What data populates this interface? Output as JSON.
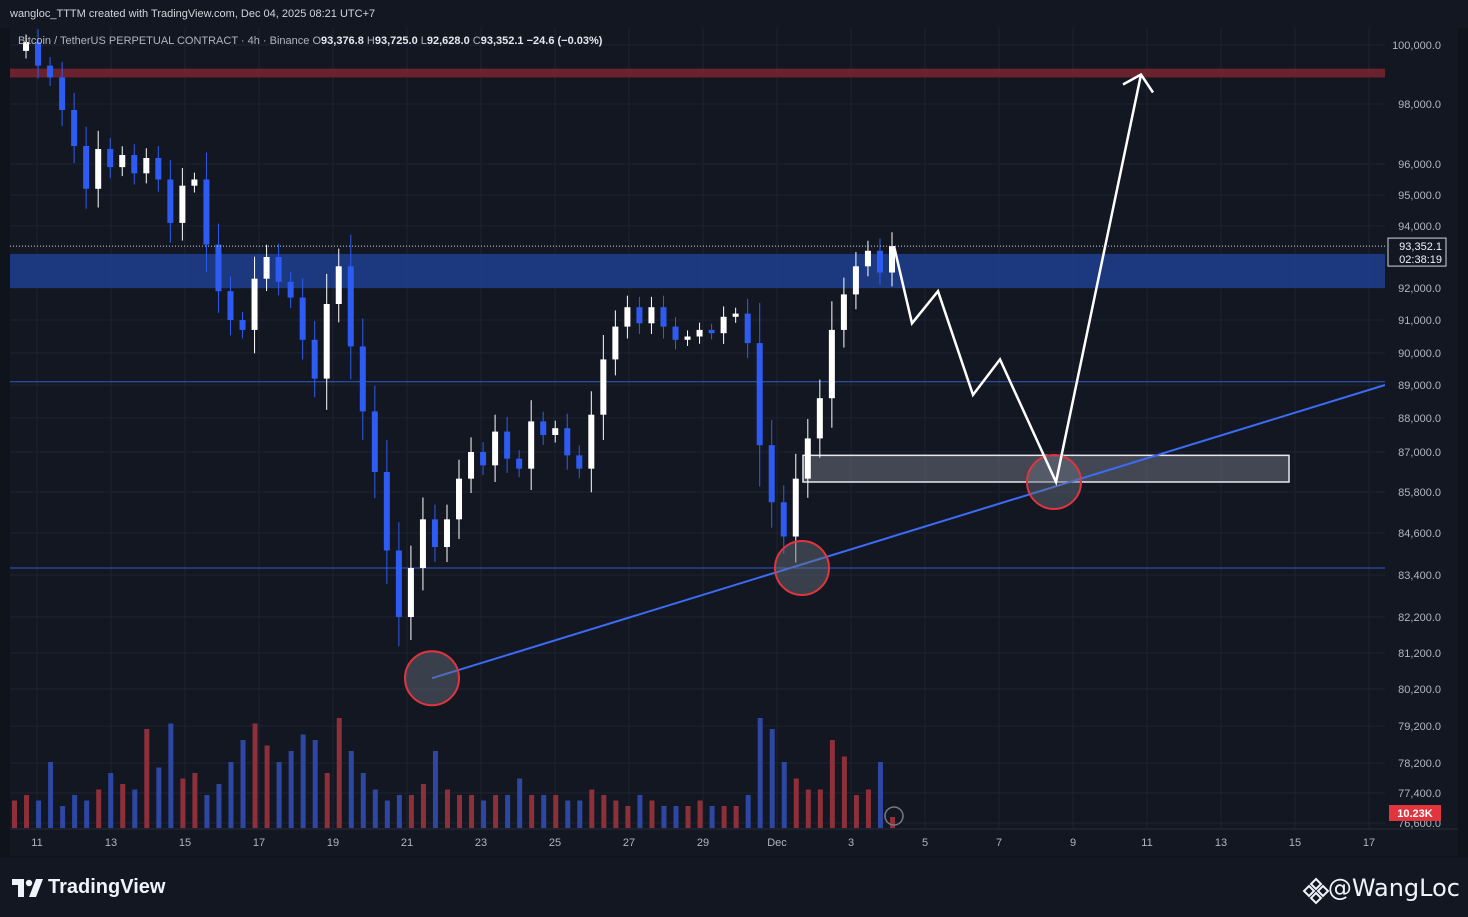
{
  "header": {
    "publisher_line": "wangloc_TTTM created with TradingView.com, Dec 04, 2025 08:21 UTC+7"
  },
  "legend": {
    "symbol": "Bitcoin / TetherUS PERPETUAL CONTRACT · 4h · Binance",
    "open_label": "O",
    "open": "93,376.8",
    "high_label": "H",
    "high": "93,725.0",
    "low_label": "L",
    "low": "92,628.0",
    "close_label": "C",
    "close": "93,352.1",
    "change": "−24.6 (−0.03%)"
  },
  "price_label": {
    "value": "93,352.1",
    "countdown": "02:38:19"
  },
  "volume_label": "10.23K",
  "footer": {
    "brand": "TradingView",
    "author": "@WangLoc"
  },
  "colors": {
    "background": "#131722",
    "up": "#ffffff",
    "down": "#2e5cf2",
    "vol_up": "#8e3039",
    "vol_down": "#2e47a3",
    "supply_zone": "#7a2430",
    "demand_zone": "#1f3f91",
    "trendline": "#3b6cf5",
    "circle": "#e0353e",
    "projection": "#ffffff"
  },
  "chart_data": {
    "type": "candlestick",
    "symbol": "Bitcoin / TetherUS PERPETUAL CONTRACT",
    "interval": "4h",
    "exchange": "Binance",
    "ohlc_last": {
      "open": 93376.8,
      "high": 93725.0,
      "low": 92628.0,
      "close": 93352.1
    },
    "y_ticks": [
      100000,
      98000,
      96000,
      95000,
      94000,
      92000,
      91000,
      90000,
      89000,
      88000,
      87000,
      85800,
      84600,
      83400,
      82200,
      81200,
      80200,
      79200,
      78200,
      77400,
      76600
    ],
    "y_tick_labels": [
      "100,000.0",
      "98,000.0",
      "96,000.0",
      "95,000.0",
      "94,000.0",
      "92,000.0",
      "91,000.0",
      "90,000.0",
      "89,000.0",
      "88,000.0",
      "87,000.0",
      "85,800.0",
      "84,600.0",
      "83,400.0",
      "82,200.0",
      "81,200.0",
      "80,200.0",
      "79,200.0",
      "78,200.0",
      "77,400.0",
      "76,600.0"
    ],
    "x_ticks": [
      "11",
      "13",
      "15",
      "17",
      "19",
      "21",
      "23",
      "25",
      "27",
      "29",
      "Dec",
      "3",
      "5",
      "7",
      "9",
      "11",
      "13",
      "15",
      "17"
    ],
    "price_path": [
      [
        0,
        99800
      ],
      [
        1,
        100100
      ],
      [
        2,
        99300
      ],
      [
        3,
        98900
      ],
      [
        4,
        97800
      ],
      [
        5,
        96600
      ],
      [
        6,
        95200
      ],
      [
        7,
        96500
      ],
      [
        8,
        95900
      ],
      [
        9,
        96300
      ],
      [
        10,
        95700
      ],
      [
        11,
        96200
      ],
      [
        12,
        95500
      ],
      [
        13,
        94100
      ],
      [
        14,
        95300
      ],
      [
        15,
        95500
      ],
      [
        16,
        93400
      ],
      [
        17,
        91900
      ],
      [
        18,
        91000
      ],
      [
        19,
        90700
      ],
      [
        20,
        92300
      ],
      [
        21,
        93000
      ],
      [
        22,
        92200
      ],
      [
        23,
        91700
      ],
      [
        24,
        90400
      ],
      [
        25,
        89200
      ],
      [
        26,
        91500
      ],
      [
        27,
        92700
      ],
      [
        28,
        90200
      ],
      [
        29,
        88200
      ],
      [
        30,
        86400
      ],
      [
        31,
        84100
      ],
      [
        32,
        82200
      ],
      [
        33,
        83600
      ],
      [
        34,
        85000
      ],
      [
        35,
        84200
      ],
      [
        36,
        85000
      ],
      [
        37,
        86200
      ],
      [
        38,
        87000
      ],
      [
        39,
        86600
      ],
      [
        40,
        87600
      ],
      [
        41,
        86800
      ],
      [
        42,
        86500
      ],
      [
        43,
        87900
      ],
      [
        44,
        87500
      ],
      [
        45,
        87700
      ],
      [
        46,
        86900
      ],
      [
        47,
        86500
      ],
      [
        48,
        88100
      ],
      [
        49,
        89800
      ],
      [
        50,
        90800
      ],
      [
        51,
        91400
      ],
      [
        52,
        90900
      ],
      [
        53,
        91400
      ],
      [
        54,
        90800
      ],
      [
        55,
        90400
      ],
      [
        56,
        90500
      ],
      [
        57,
        90700
      ],
      [
        58,
        90600
      ],
      [
        59,
        91100
      ],
      [
        60,
        91200
      ],
      [
        61,
        90300
      ],
      [
        62,
        87200
      ],
      [
        63,
        85500
      ],
      [
        64,
        84500
      ],
      [
        65,
        86200
      ],
      [
        66,
        87400
      ],
      [
        67,
        88600
      ],
      [
        68,
        90700
      ],
      [
        69,
        91800
      ],
      [
        70,
        92700
      ],
      [
        71,
        93200
      ],
      [
        72,
        92500
      ],
      [
        73,
        93350
      ]
    ],
    "volume_path": [
      [
        0,
        0.25
      ],
      [
        1,
        0.3
      ],
      [
        2,
        0.25
      ],
      [
        3,
        0.6
      ],
      [
        4,
        0.2
      ],
      [
        5,
        0.3
      ],
      [
        6,
        0.25
      ],
      [
        7,
        0.35
      ],
      [
        8,
        0.5
      ],
      [
        9,
        0.4
      ],
      [
        10,
        0.35
      ],
      [
        11,
        0.9
      ],
      [
        12,
        0.55
      ],
      [
        13,
        0.95
      ],
      [
        14,
        0.45
      ],
      [
        15,
        0.5
      ],
      [
        16,
        0.3
      ],
      [
        17,
        0.4
      ],
      [
        18,
        0.6
      ],
      [
        19,
        0.8
      ],
      [
        20,
        0.95
      ],
      [
        21,
        0.75
      ],
      [
        22,
        0.6
      ],
      [
        23,
        0.7
      ],
      [
        24,
        0.85
      ],
      [
        25,
        0.8
      ],
      [
        26,
        0.5
      ],
      [
        27,
        1.0
      ],
      [
        28,
        0.7
      ],
      [
        29,
        0.5
      ],
      [
        30,
        0.35
      ],
      [
        31,
        0.25
      ],
      [
        32,
        0.3
      ],
      [
        33,
        0.3
      ],
      [
        34,
        0.4
      ],
      [
        35,
        0.7
      ],
      [
        36,
        0.35
      ],
      [
        37,
        0.3
      ],
      [
        38,
        0.3
      ],
      [
        39,
        0.25
      ],
      [
        40,
        0.3
      ],
      [
        41,
        0.3
      ],
      [
        42,
        0.45
      ],
      [
        43,
        0.3
      ],
      [
        44,
        0.3
      ],
      [
        45,
        0.3
      ],
      [
        46,
        0.25
      ],
      [
        47,
        0.25
      ],
      [
        48,
        0.35
      ],
      [
        49,
        0.3
      ],
      [
        50,
        0.25
      ],
      [
        51,
        0.2
      ],
      [
        52,
        0.3
      ],
      [
        53,
        0.25
      ],
      [
        54,
        0.2
      ],
      [
        55,
        0.2
      ],
      [
        56,
        0.2
      ],
      [
        57,
        0.25
      ],
      [
        58,
        0.2
      ],
      [
        59,
        0.2
      ],
      [
        60,
        0.2
      ],
      [
        61,
        0.3
      ],
      [
        62,
        1.0
      ],
      [
        63,
        0.9
      ],
      [
        64,
        0.6
      ],
      [
        65,
        0.45
      ],
      [
        66,
        0.35
      ],
      [
        67,
        0.35
      ],
      [
        68,
        0.8
      ],
      [
        69,
        0.65
      ],
      [
        70,
        0.3
      ],
      [
        71,
        0.35
      ],
      [
        72,
        0.6
      ],
      [
        73,
        0.1
      ]
    ],
    "zones": [
      {
        "kind": "supply",
        "price_from": 98900,
        "price_to": 99200
      },
      {
        "kind": "demand",
        "price_from": 92000,
        "price_to": 93100
      },
      {
        "kind": "order_block",
        "price_from": 86100,
        "price_to": 86900
      }
    ],
    "horizontal_lines": [
      89100,
      83600
    ],
    "trendline": {
      "from": [
        81.5,
        80500
      ],
      "to": [
        105,
        89000
      ]
    },
    "projection_path": [
      [
        93350,
        0
      ],
      [
        90900,
        1
      ],
      [
        91900,
        2
      ],
      [
        88700,
        3
      ],
      [
        89800,
        4
      ],
      [
        86100,
        5
      ],
      [
        99000,
        6
      ]
    ],
    "highlight_circles": [
      80500,
      83600,
      86100
    ]
  }
}
